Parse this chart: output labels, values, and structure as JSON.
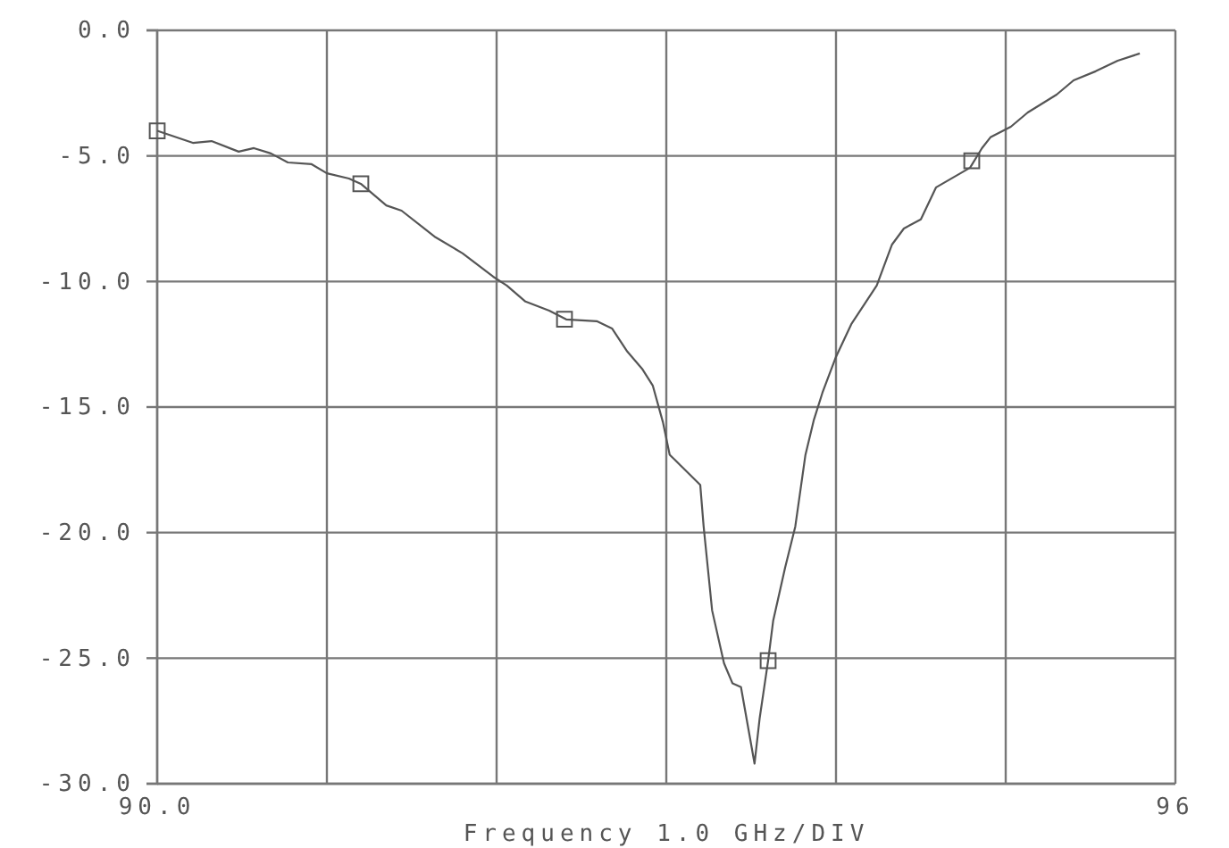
{
  "chart_data": {
    "type": "line",
    "xlabel": "Frequency 1.0 GHz/DIV",
    "xlim": [
      90,
      96
    ],
    "ylim": [
      -30,
      0
    ],
    "xticks": [
      {
        "value": 90,
        "label": "90.0"
      },
      {
        "value": 91,
        "label": null
      },
      {
        "value": 92,
        "label": null
      },
      {
        "value": 93,
        "label": null
      },
      {
        "value": 94,
        "label": null
      },
      {
        "value": 95,
        "label": null
      },
      {
        "value": 96,
        "label": "96"
      }
    ],
    "yticks": [
      {
        "value": 0,
        "label": "0.0"
      },
      {
        "value": -5,
        "label": "-5.0"
      },
      {
        "value": -10,
        "label": "-10.0"
      },
      {
        "value": -15,
        "label": "-15.0"
      },
      {
        "value": -20,
        "label": "-20.0"
      },
      {
        "value": -25,
        "label": "-25.0"
      },
      {
        "value": -30,
        "label": "-30.0"
      }
    ],
    "grid": true,
    "series": [
      {
        "type": "line",
        "color": "#555555",
        "marker": "none",
        "x": [
          90,
          90.21,
          90.32,
          90.48,
          90.57,
          90.67,
          90.77,
          90.91,
          91.0,
          91.13,
          91.2,
          91.35,
          91.44,
          91.64,
          91.8,
          91.98,
          92.06,
          92.17,
          92.31,
          92.41,
          92.59,
          92.68,
          92.77,
          92.86,
          92.92,
          92.98,
          93.02,
          93.05,
          93.2,
          93.22,
          93.27,
          93.34,
          93.39,
          93.44,
          93.52,
          93.55,
          93.6,
          93.63,
          93.7,
          93.76,
          93.82,
          93.87,
          93.92,
          94.0,
          94.09,
          94.24,
          94.33,
          94.4,
          94.5,
          94.59,
          94.79,
          94.86,
          94.91,
          95.03,
          95.13,
          95.3,
          95.4,
          95.53,
          95.66,
          95.79
        ],
        "values": [
          -4.0,
          -4.48,
          -4.41,
          -4.83,
          -4.69,
          -4.9,
          -5.26,
          -5.33,
          -5.69,
          -5.9,
          -6.11,
          -6.97,
          -7.18,
          -8.24,
          -8.88,
          -9.81,
          -10.16,
          -10.8,
          -11.16,
          -11.51,
          -11.58,
          -11.87,
          -12.79,
          -13.5,
          -14.14,
          -15.6,
          -16.9,
          -17.1,
          -18.1,
          -19.76,
          -23.1,
          -25.2,
          -26.0,
          -26.15,
          -29.2,
          -27.4,
          -25.1,
          -23.5,
          -21.4,
          -19.76,
          -16.9,
          -15.5,
          -14.43,
          -13.0,
          -11.7,
          -10.16,
          -8.53,
          -7.89,
          -7.53,
          -6.25,
          -5.47,
          -4.69,
          -4.26,
          -3.84,
          -3.27,
          -2.56,
          -1.99,
          -1.63,
          -1.21,
          -0.92
        ]
      },
      {
        "type": "scatter",
        "color": "#555555",
        "marker": "square",
        "x": [
          90.0,
          91.2,
          92.4,
          93.6,
          94.8
        ],
        "values": [
          -4.0,
          -6.11,
          -11.5,
          -25.1,
          -5.19
        ]
      }
    ]
  }
}
